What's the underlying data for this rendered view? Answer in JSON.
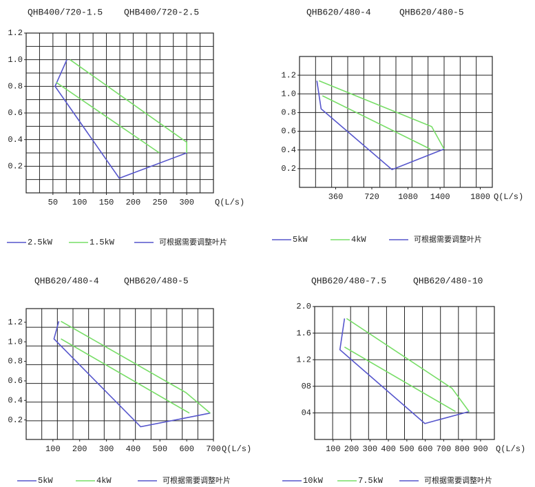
{
  "chart_data": [
    {
      "type": "line",
      "titles": [
        "QHB400/720-1.5",
        "QHB400/720-2.5"
      ],
      "xlabel": "Q(L/s)",
      "xlim": [
        0,
        350
      ],
      "xticks": [
        50,
        100,
        150,
        200,
        250,
        300
      ],
      "ylim": [
        0,
        1.2
      ],
      "yticks": [
        1.2,
        {
          "value": 1,
          "label": "1.0"
        },
        0.8,
        0.6,
        0.4,
        0.2
      ],
      "grid": true,
      "note": "可根据需要调整叶片",
      "series": [
        {
          "name": "2.5kW",
          "color": "#5555cc",
          "x": [
            76,
            54,
            174,
            300
          ],
          "values": [
            1.0,
            0.8,
            0.11,
            0.3
          ]
        },
        {
          "name": "1.5kW",
          "color": "#77dd66",
          "x": [
            82,
            300,
            300,
            null,
            56,
            249
          ],
          "values": [
            1.0,
            0.38,
            0.3,
            null,
            0.83,
            0.3
          ]
        }
      ]
    },
    {
      "type": "line",
      "titles": [
        "QHB620/480-4",
        "QHB620/480-5"
      ],
      "xlabel": "Q(L/s)",
      "xlim": [
        0,
        1920
      ],
      "xticks": [
        360,
        720,
        1080,
        1400,
        1800
      ],
      "ylim": [
        0,
        1.4
      ],
      "yticks": [
        1.2,
        {
          "value": 1,
          "label": "1.0"
        },
        0.8,
        0.6,
        0.4,
        0.2
      ],
      "grid": true,
      "note": "可根据需要调整叶片",
      "series": [
        {
          "name": "5kW",
          "color": "#5555cc",
          "x": [
            173,
            215,
            921,
            1440
          ],
          "values": [
            1.14,
            0.84,
            0.19,
            0.41
          ]
        },
        {
          "name": "4kW",
          "color": "#77dd66",
          "x": [
            194,
            1316,
            1440,
            null,
            228,
            1302
          ],
          "values": [
            1.14,
            0.65,
            0.41,
            null,
            0.98,
            0.41
          ]
        }
      ]
    },
    {
      "type": "line",
      "titles": [
        "QHB620/480-4",
        "QHB620/480-5"
      ],
      "xlabel": "Q(L/s)",
      "xlim": [
        0,
        700
      ],
      "xticks": [
        100,
        200,
        300,
        400,
        500,
        600,
        700
      ],
      "ylim": [
        0,
        1.34
      ],
      "yticks": [
        1.2,
        {
          "value": 1,
          "label": "1.0"
        },
        0.8,
        0.6,
        0.4,
        0.2
      ],
      "grid": true,
      "note": "可根据需要调整叶片",
      "series": [
        {
          "name": "5kW",
          "color": "#5555cc",
          "x": [
            122,
            104,
            428,
            688
          ],
          "values": [
            1.21,
            1.03,
            0.13,
            0.27
          ]
        },
        {
          "name": "4kW",
          "color": "#77dd66",
          "x": [
            130,
            597,
            688,
            null,
            130,
            610
          ],
          "values": [
            1.21,
            0.48,
            0.27,
            null,
            1.03,
            0.27
          ]
        }
      ]
    },
    {
      "type": "line",
      "titles": [
        "QHB620/480-7.5",
        "QHB620/480-10"
      ],
      "xlabel": "Q(L/s)",
      "xlim": [
        0,
        975
      ],
      "xticks": [
        100,
        200,
        300,
        400,
        500,
        600,
        700,
        800,
        900
      ],
      "ylim": [
        0,
        2.0
      ],
      "yticks": [
        {
          "value": 2,
          "label": "2.0"
        },
        1.6,
        1.2,
        {
          "value": 0.8,
          "label": "08"
        },
        {
          "value": 0.4,
          "label": "04"
        }
      ],
      "grid": true,
      "note": "可根据需要调整叶片",
      "series": [
        {
          "name": "10kW",
          "color": "#5555cc",
          "x": [
            162,
            137,
            598,
            838
          ],
          "values": [
            1.82,
            1.35,
            0.24,
            0.42
          ]
        },
        {
          "name": "7.5kW",
          "color": "#77dd66",
          "x": [
            173,
            745,
            838,
            null,
            162,
            764
          ],
          "values": [
            1.82,
            0.77,
            0.42,
            null,
            1.39,
            0.42
          ]
        }
      ]
    }
  ]
}
